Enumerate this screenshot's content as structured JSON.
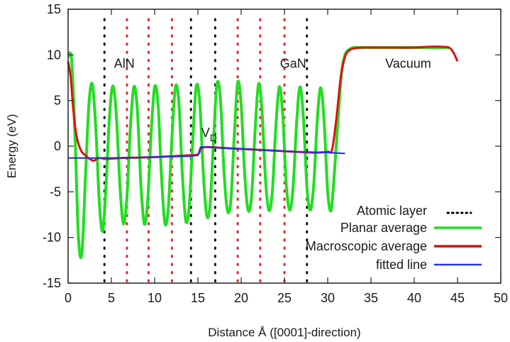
{
  "chart_data": {
    "type": "line",
    "xlabel": "Distance Å ([0001]-direction)",
    "ylabel": "Energy (eV)",
    "xlim": [
      0,
      50
    ],
    "ylim": [
      -15,
      15
    ],
    "x_ticks": [
      0,
      5,
      10,
      15,
      20,
      25,
      30,
      35,
      40,
      45,
      50
    ],
    "y_ticks": [
      -15,
      -10,
      -5,
      0,
      5,
      10,
      15
    ],
    "grid": false,
    "legend_position": "bottom-right",
    "annotations": [
      {
        "text": "AlN",
        "x": 6.5,
        "y": 8.6
      },
      {
        "text": "GaN",
        "x": 26.0,
        "y": 8.6
      },
      {
        "text": "Vacuum",
        "x": 39.3,
        "y": 8.6
      },
      {
        "text": "V",
        "sub": "D",
        "x": 16.3,
        "y": 1.0
      }
    ],
    "atomic_layers": {
      "black": [
        4.2,
        14.2,
        17.0,
        27.6
      ],
      "red": [
        6.8,
        9.3,
        12.0,
        19.6,
        22.2,
        25.0
      ]
    },
    "series": [
      {
        "name": "Atomic layer",
        "color": "#000000",
        "style": "dotted"
      },
      {
        "name": "Planar average",
        "color": "#22dd22",
        "style": "solid",
        "x": [
          0.0,
          0.4,
          0.8,
          1.2,
          1.6,
          2.0,
          2.4,
          2.8,
          3.2,
          3.6,
          4.0,
          4.4,
          4.8,
          5.2,
          5.6,
          6.0,
          6.4,
          6.8,
          7.2,
          7.6,
          8.0,
          8.4,
          8.8,
          9.2,
          9.6,
          10.0,
          10.4,
          10.8,
          11.2,
          11.6,
          12.0,
          12.4,
          12.8,
          13.2,
          13.6,
          14.0,
          14.4,
          14.8,
          15.2,
          15.6,
          16.0,
          16.4,
          16.8,
          17.2,
          17.6,
          18.0,
          18.4,
          18.8,
          19.2,
          19.6,
          20.0,
          20.4,
          20.8,
          21.2,
          21.6,
          22.0,
          22.4,
          22.8,
          23.2,
          23.6,
          24.0,
          24.4,
          24.8,
          25.2,
          25.6,
          26.0,
          26.4,
          26.8,
          27.2,
          27.6,
          28.0,
          28.4,
          28.8,
          29.2,
          29.6,
          30.0,
          30.4,
          30.8,
          31.2,
          31.6,
          32.0,
          32.5,
          33.0,
          34.0,
          36.0,
          38.0,
          40.0,
          42.0,
          44.0
        ],
        "values": [
          9.8,
          9.5,
          1.0,
          -10.0,
          -11.7,
          -3.5,
          4.5,
          6.8,
          2.0,
          -6.0,
          -9.3,
          -4.0,
          3.5,
          6.6,
          3.0,
          -4.5,
          -8.5,
          -5.5,
          2.0,
          6.5,
          4.0,
          -4.0,
          -8.5,
          -6.0,
          1.5,
          6.5,
          4.5,
          -3.5,
          -8.5,
          -6.5,
          1.0,
          6.5,
          4.8,
          -3.0,
          -8.2,
          -6.5,
          0.5,
          6.5,
          5.0,
          -2.5,
          -7.5,
          -6.5,
          0.5,
          6.8,
          5.2,
          -2.5,
          -7.0,
          -6.0,
          1.0,
          7.0,
          4.5,
          -3.0,
          -7.0,
          -5.5,
          1.5,
          6.8,
          4.0,
          -3.5,
          -7.0,
          -5.0,
          2.0,
          6.5,
          3.5,
          -4.0,
          -7.0,
          -4.5,
          2.5,
          6.5,
          3.0,
          -4.5,
          -7.0,
          -4.0,
          3.0,
          6.4,
          2.5,
          -5.0,
          -7.0,
          -2.5,
          3.0,
          8.0,
          10.0,
          10.6,
          10.8,
          10.8,
          10.8,
          10.8,
          10.8,
          10.8,
          10.8
        ]
      },
      {
        "name": "Macroscopic average",
        "color": "#dd1111",
        "style": "solid",
        "x": [
          0.0,
          0.3,
          0.6,
          1.0,
          1.5,
          2.0,
          2.5,
          3.0,
          3.5,
          4.5,
          6.0,
          8.0,
          10.0,
          12.0,
          14.0,
          15.0,
          15.3,
          15.5,
          16.0,
          18.0,
          20.0,
          22.0,
          24.0,
          26.0,
          28.0,
          29.0,
          30.0,
          30.5,
          31.0,
          31.5,
          32.0,
          32.5,
          33.0,
          34.0,
          36.0,
          38.0,
          40.0,
          42.0,
          43.0,
          44.0,
          44.5,
          45.0
        ],
        "values": [
          9.3,
          7.5,
          4.0,
          1.0,
          -0.5,
          -1.0,
          -1.4,
          -1.6,
          -1.3,
          -1.4,
          -1.3,
          -1.25,
          -1.2,
          -1.1,
          -1.0,
          -0.9,
          -0.3,
          -0.2,
          -0.1,
          -0.2,
          -0.3,
          -0.4,
          -0.5,
          -0.6,
          -0.7,
          -0.7,
          -0.6,
          -0.4,
          3.0,
          7.5,
          9.8,
          10.5,
          10.7,
          10.8,
          10.8,
          10.8,
          10.8,
          10.9,
          10.9,
          10.8,
          10.3,
          9.3
        ]
      },
      {
        "name": "fitted line",
        "color": "#2233dd",
        "style": "solid",
        "x": [
          0,
          2,
          4,
          6,
          8,
          10,
          12,
          14,
          15.0,
          15.3,
          16,
          18,
          20,
          22,
          24,
          26,
          28,
          30,
          32
        ],
        "values": [
          -1.3,
          -1.3,
          -1.3,
          -1.28,
          -1.25,
          -1.2,
          -1.15,
          -1.1,
          -1.0,
          -0.1,
          -0.1,
          -0.2,
          -0.3,
          -0.4,
          -0.5,
          -0.6,
          -0.65,
          -0.7,
          -0.8
        ]
      }
    ]
  }
}
